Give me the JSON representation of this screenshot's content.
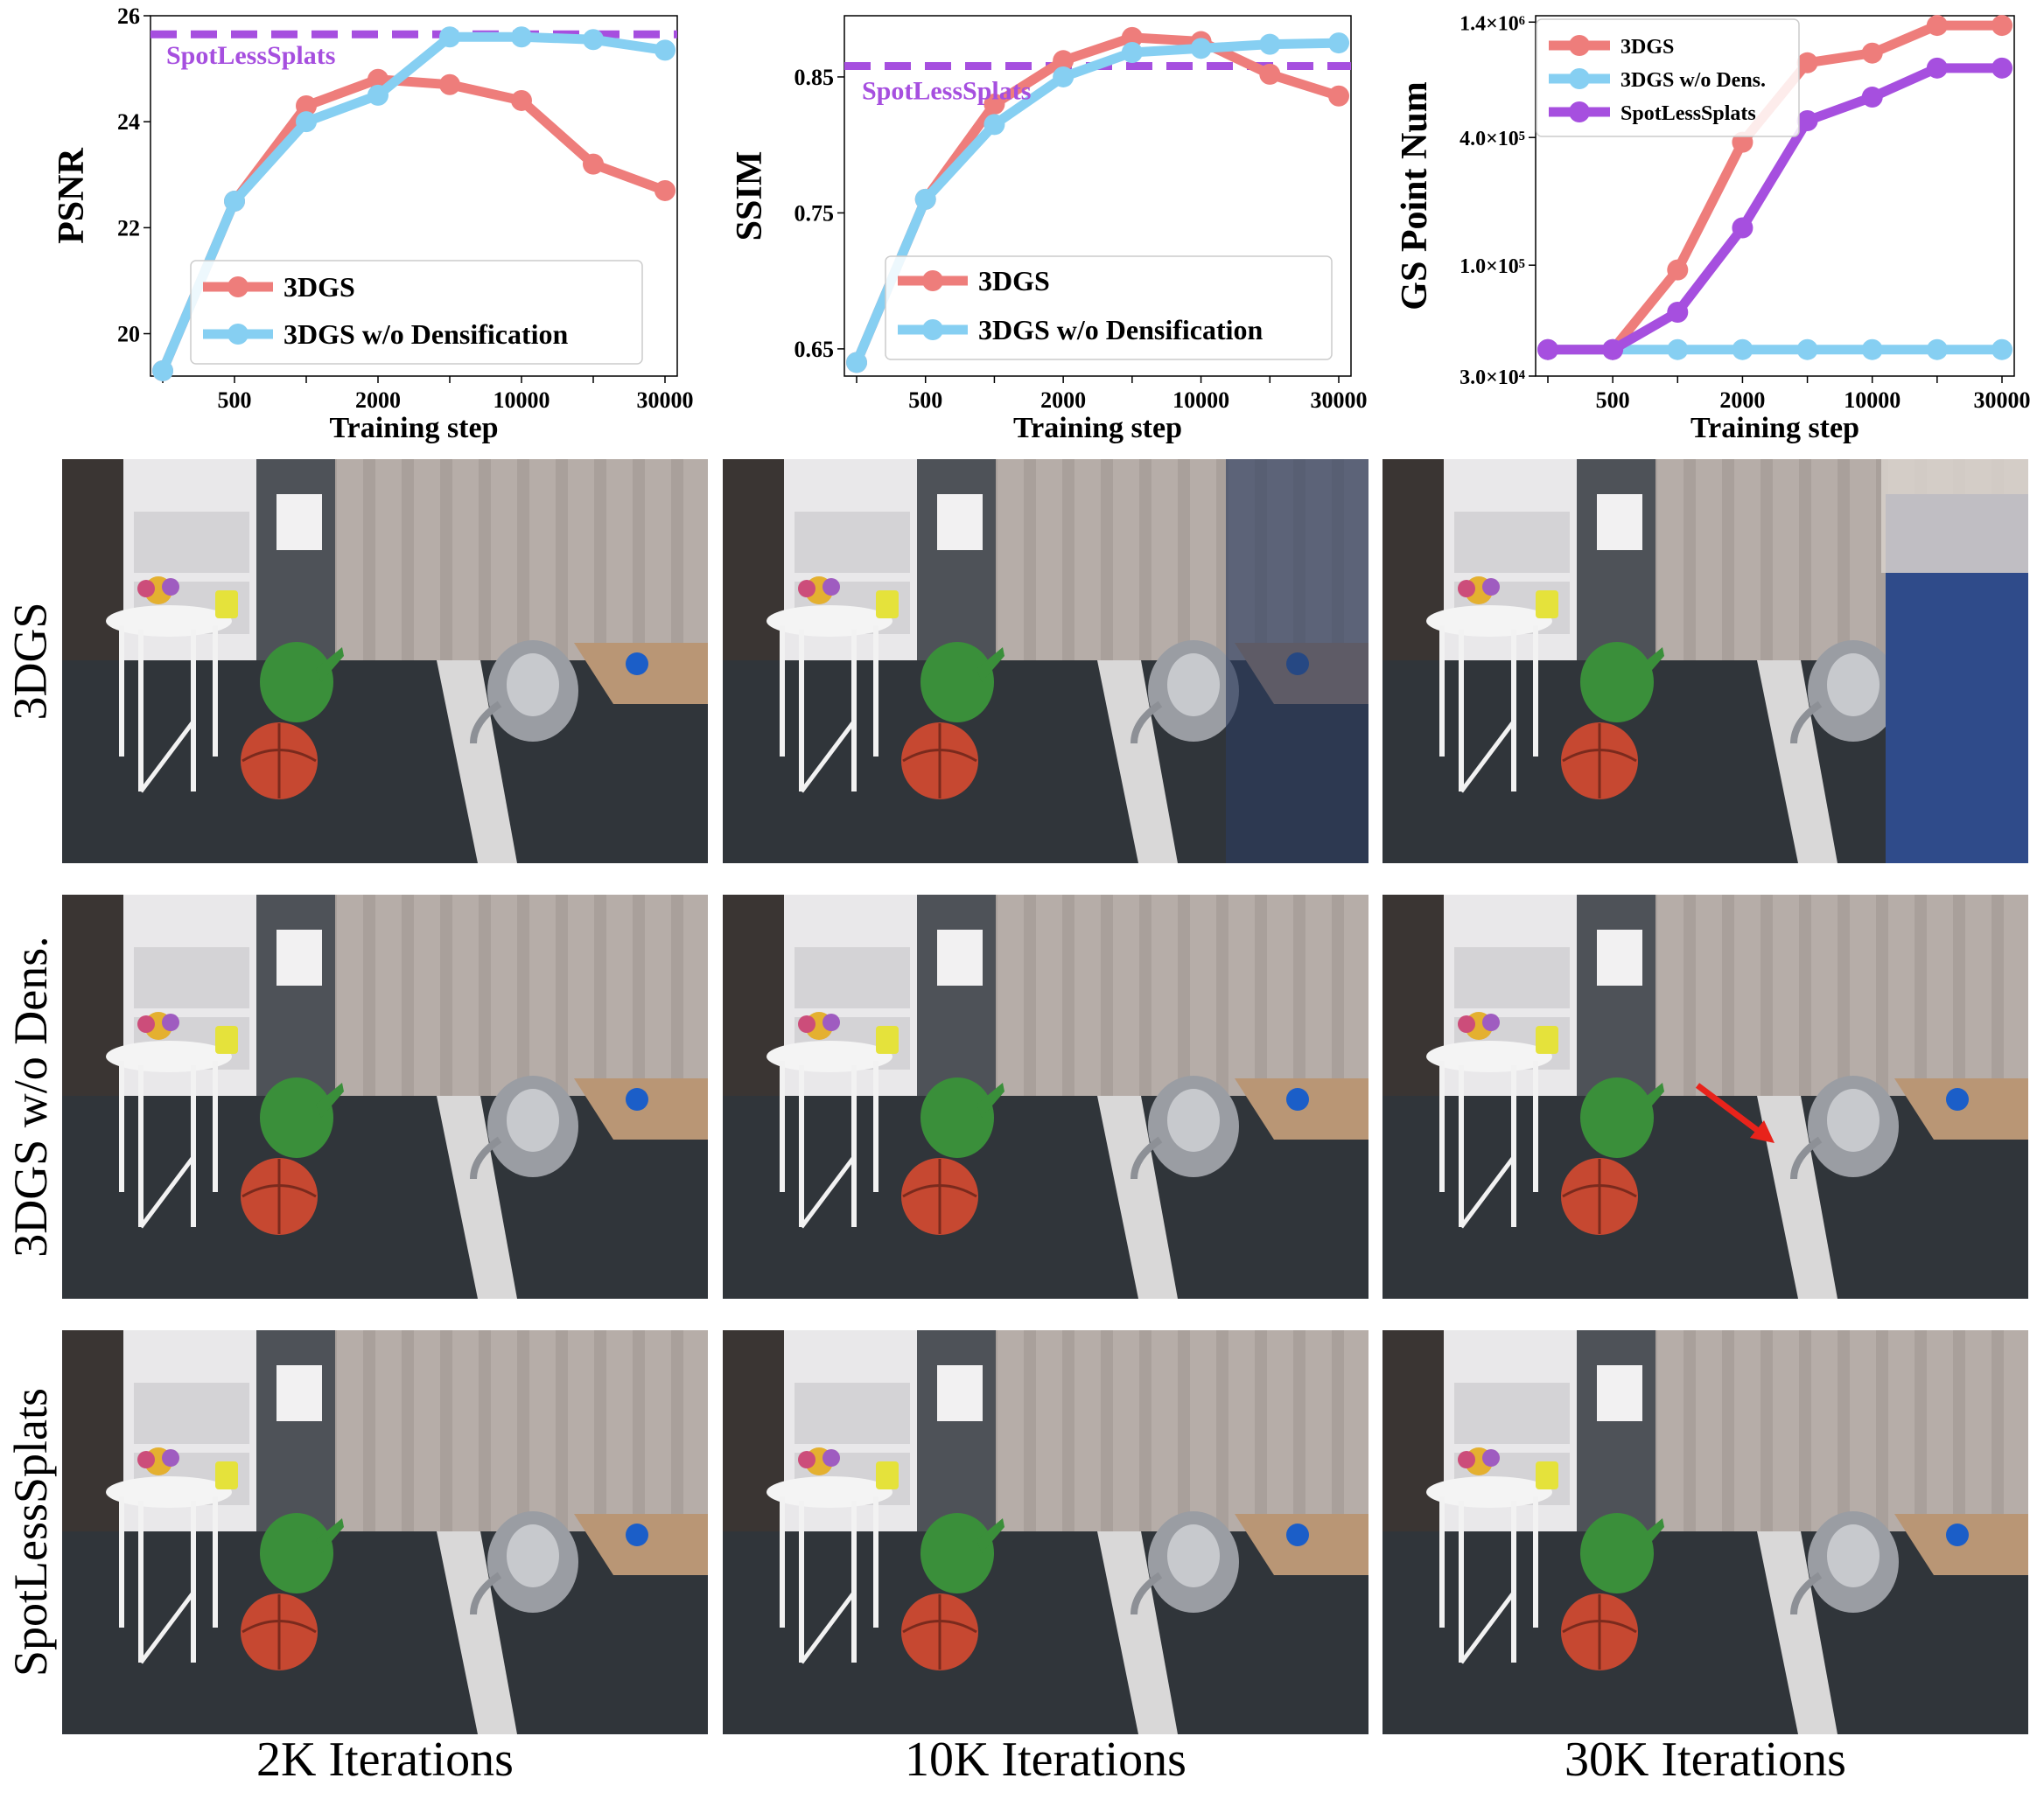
{
  "colors": {
    "3dgs": "#ee7d7b",
    "wo_dens": "#86cff2",
    "spotless": "#a64fdf",
    "arrow": "#e8231b"
  },
  "chart_data": [
    {
      "type": "line",
      "id": "psnr",
      "ylabel": "PSNR",
      "xlabel": "Training step",
      "x_categories": [
        "",
        "500",
        "",
        "2000",
        "",
        "10000",
        "",
        "30000"
      ],
      "yticks": [
        "20",
        "22",
        "24",
        "26"
      ],
      "ylim": [
        19.2,
        26.0
      ],
      "reference": {
        "label": "SpotLessSplats",
        "value": 25.65
      },
      "legend_position": "lower-right",
      "series": [
        {
          "name": "3DGS",
          "values": [
            19.3,
            22.5,
            24.3,
            24.8,
            24.7,
            24.4,
            23.2,
            22.7
          ]
        },
        {
          "name": "3DGS w/o Densification",
          "values": [
            19.3,
            22.5,
            24.0,
            24.5,
            25.6,
            25.6,
            25.55,
            25.35
          ]
        }
      ]
    },
    {
      "type": "line",
      "id": "ssim",
      "ylabel": "SSIM",
      "xlabel": "Training step",
      "x_categories": [
        "",
        "500",
        "",
        "2000",
        "",
        "10000",
        "",
        "30000"
      ],
      "yticks": [
        "0.65",
        "0.75",
        "0.85"
      ],
      "ylim": [
        0.63,
        0.895
      ],
      "reference": {
        "label": "SpotLessSplats",
        "value": 0.858
      },
      "legend_position": "lower-right",
      "series": [
        {
          "name": "3DGS",
          "values": [
            0.64,
            0.76,
            0.83,
            0.862,
            0.879,
            0.876,
            0.852,
            0.836
          ]
        },
        {
          "name": "3DGS w/o Densification",
          "values": [
            0.64,
            0.76,
            0.815,
            0.85,
            0.868,
            0.871,
            0.874,
            0.875
          ]
        }
      ]
    },
    {
      "type": "line",
      "id": "gs_points",
      "ylabel": "GS Point Num",
      "xlabel": "Training step",
      "yscale": "log",
      "x_categories": [
        "",
        "500",
        "",
        "2000",
        "",
        "10000",
        "",
        "30000"
      ],
      "yticks": [
        "3.0×10⁴",
        "1.0×10⁵",
        "4.0×10⁵",
        "1.4×10⁶"
      ],
      "ytick_values": [
        30000,
        100000,
        400000,
        1400000
      ],
      "ylim": [
        30000,
        1500000
      ],
      "legend_position": "top-left",
      "series": [
        {
          "name": "3DGS",
          "values": [
            40000,
            40000,
            95000,
            380000,
            900000,
            1000000,
            1350000,
            1350000
          ]
        },
        {
          "name": "3DGS w/o Dens.",
          "values": [
            40000,
            40000,
            40000,
            40000,
            40000,
            40000,
            40000,
            40000
          ]
        },
        {
          "name": "SpotLessSplats",
          "values": [
            40000,
            40000,
            60000,
            150000,
            480000,
            620000,
            850000,
            850000
          ]
        }
      ]
    }
  ],
  "grid": {
    "rows": [
      {
        "label": "3DGS"
      },
      {
        "label": "3DGS  w/o Dens."
      },
      {
        "label": "SpotLessSplats"
      }
    ],
    "columns": [
      {
        "label": "2K Iterations"
      },
      {
        "label": "10K Iterations"
      },
      {
        "label": "30K Iterations"
      }
    ]
  }
}
